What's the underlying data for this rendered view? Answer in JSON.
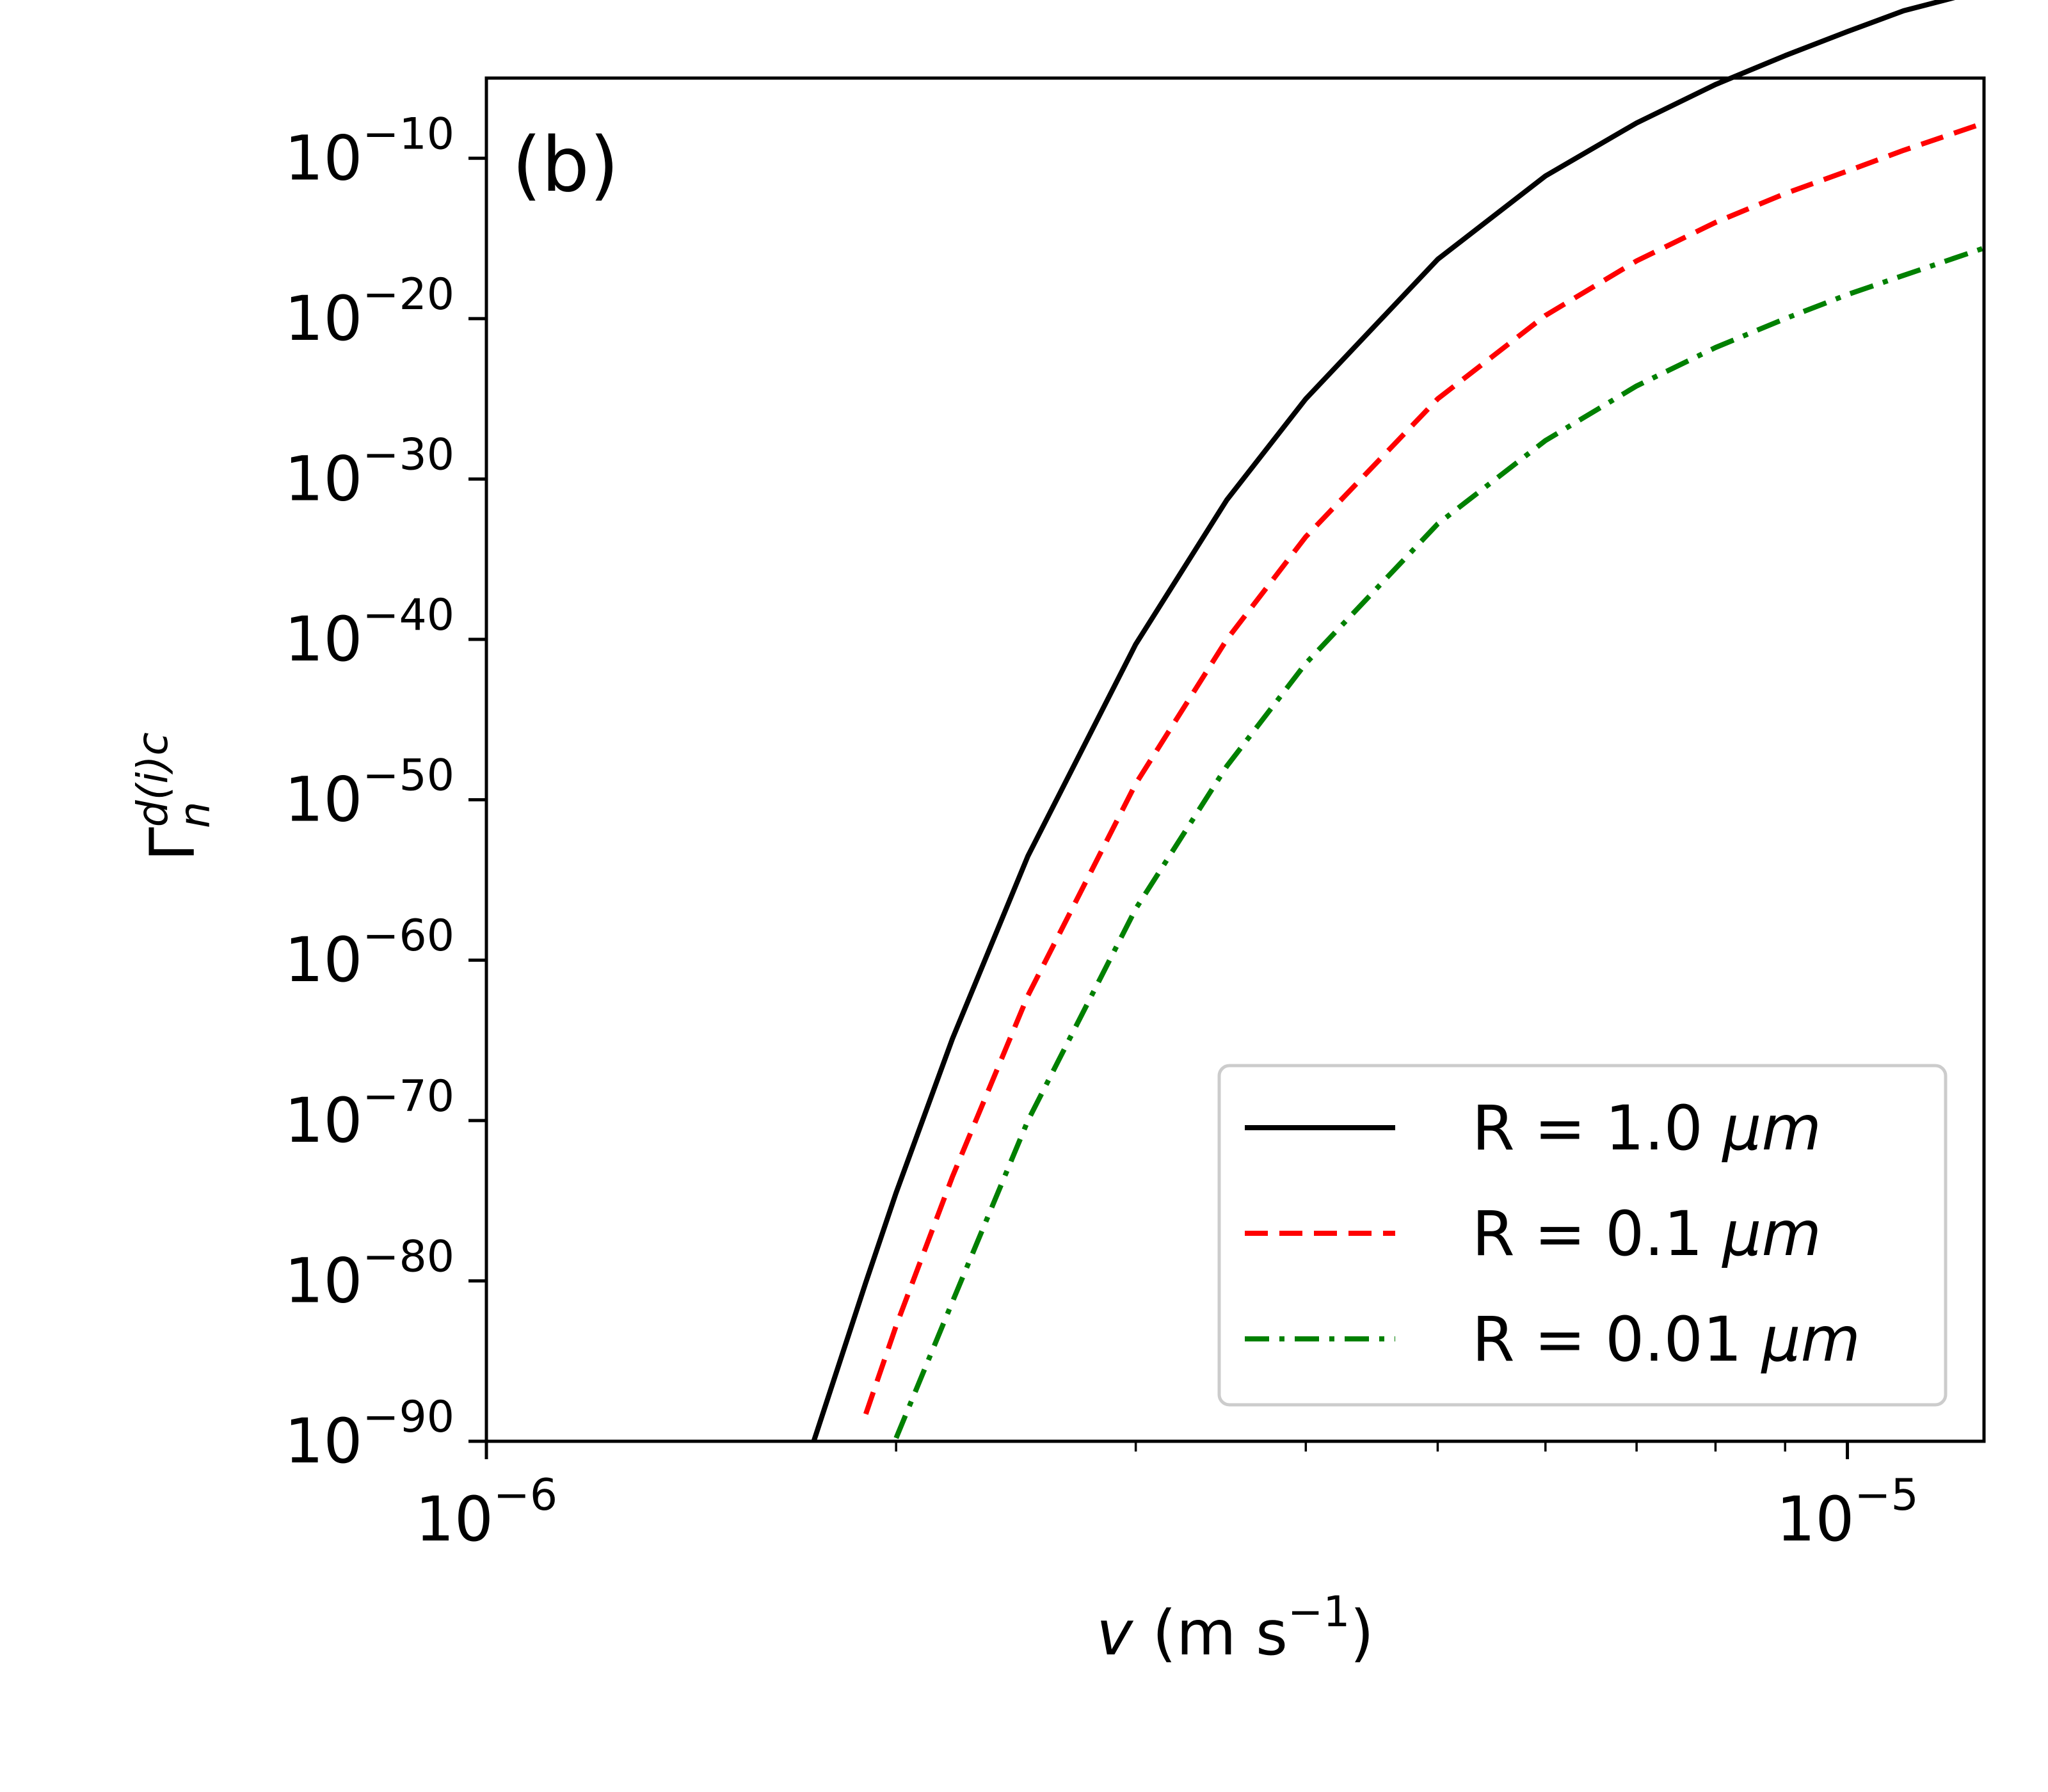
{
  "chart_data": {
    "type": "line",
    "panel_label": "(b)",
    "xscale": "log",
    "yscale": "log",
    "xlim": [
      1e-06,
      1.26e-05
    ],
    "ylim": [
      1e-90,
      1e-05
    ],
    "x_ticks": [
      {
        "value": 1e-06,
        "base": "10",
        "exp": "−6"
      },
      {
        "value": 1e-05,
        "base": "10",
        "exp": "−5"
      }
    ],
    "y_ticks": [
      {
        "value": 1e-90,
        "base": "10",
        "exp": "−90"
      },
      {
        "value": 1e-80,
        "base": "10",
        "exp": "−80"
      },
      {
        "value": 1e-70,
        "base": "10",
        "exp": "−70"
      },
      {
        "value": 1e-60,
        "base": "10",
        "exp": "−60"
      },
      {
        "value": 1e-50,
        "base": "10",
        "exp": "−50"
      },
      {
        "value": 1e-40,
        "base": "10",
        "exp": "−40"
      },
      {
        "value": 1e-30,
        "base": "10",
        "exp": "−30"
      },
      {
        "value": 1e-20,
        "base": "10",
        "exp": "−20"
      },
      {
        "value": 1e-10,
        "base": "10",
        "exp": "−10"
      }
    ],
    "xlabel": {
      "var": "v",
      "unit_prefix": " (m s",
      "unit_exp": "−1",
      "unit_suffix": ")"
    },
    "ylabel": {
      "symbol": "Γ",
      "sup": "d(i)c",
      "sub": "n"
    },
    "legend": {
      "position": "lower right"
    },
    "series": [
      {
        "name": "R = 1.0 μm",
        "label_prefix": "R = 1.0 ",
        "label_unit": "μm",
        "color": "#000000",
        "style": "solid",
        "x": [
          1.74e-06,
          1.9e-06,
          2e-06,
          2.2e-06,
          2.5e-06,
          3e-06,
          3.5e-06,
          4e-06,
          5e-06,
          6e-06,
          7e-06,
          8e-06,
          9e-06,
          1e-05,
          1.1e-05,
          1.26e-05
        ],
        "y_exp": [
          -90,
          -80.1,
          -74.5,
          -64.9,
          -53.5,
          -40.3,
          -31.3,
          -25.0,
          -16.3,
          -11.1,
          -7.8,
          -5.4,
          -3.6,
          -2.1,
          -0.8,
          0.5
        ]
      },
      {
        "name": "R = 0.1 μm",
        "label_prefix": "R = 0.1 ",
        "label_unit": "μm",
        "color": "#ff0000",
        "style": "dashed",
        "x": [
          1.9e-06,
          2e-06,
          2.2e-06,
          2.5e-06,
          3e-06,
          3.5e-06,
          4e-06,
          5e-06,
          6e-06,
          7e-06,
          8e-06,
          9e-06,
          1e-05,
          1.1e-05,
          1.26e-05
        ],
        "y_exp": [
          -88.3,
          -82.8,
          -73.5,
          -62.2,
          -49.0,
          -40.0,
          -33.6,
          -25.0,
          -19.8,
          -16.4,
          -14.0,
          -12.2,
          -10.8,
          -9.5,
          -7.8
        ]
      },
      {
        "name": "R = 0.01 μm",
        "label_prefix": "R = 0.01 ",
        "label_unit": "μm",
        "color": "#008000",
        "style": "dashdot",
        "x": [
          2e-06,
          2.2e-06,
          2.5e-06,
          3e-06,
          3.5e-06,
          4e-06,
          5e-06,
          6e-06,
          7e-06,
          8e-06,
          9e-06,
          1e-05,
          1.1e-05,
          1.26e-05
        ],
        "y_exp": [
          -89.8,
          -81.3,
          -70.0,
          -56.8,
          -47.9,
          -41.5,
          -32.8,
          -27.6,
          -24.2,
          -21.8,
          -20.0,
          -18.5,
          -17.3,
          -15.6
        ]
      }
    ]
  }
}
